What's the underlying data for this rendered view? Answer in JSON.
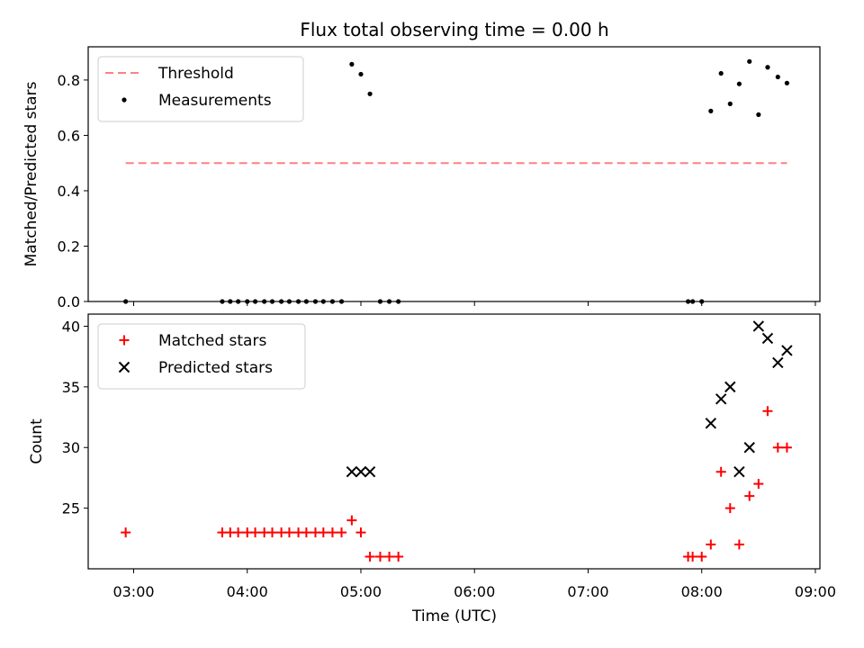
{
  "chart_data": {
    "type": "scatter",
    "title": "Flux total observing time = 0.00 h",
    "xlabel": "Time (UTC)",
    "x_ticks": [
      "03:00",
      "04:00",
      "05:00",
      "06:00",
      "07:00",
      "08:00",
      "09:00"
    ],
    "x_tick_hours": [
      3,
      4,
      5,
      6,
      7,
      8,
      9
    ],
    "xlim_hours": [
      2.6,
      9.04
    ],
    "panels": [
      {
        "name": "ratio",
        "ylabel": "Matched/Predicted stars",
        "ylim": [
          0,
          0.92
        ],
        "y_ticks": [
          0.0,
          0.2,
          0.4,
          0.6,
          0.8
        ],
        "y_tick_labels": [
          "0.0",
          "0.2",
          "0.4",
          "0.6",
          "0.8"
        ],
        "legend_position": "upper-left",
        "threshold": {
          "name": "Threshold",
          "value": 0.5,
          "x_range_hours": [
            2.93,
            8.75
          ],
          "color": "#ff8080"
        },
        "series": [
          {
            "name": "Measurements",
            "marker": "dot",
            "color": "#000000",
            "points": [
              [
                2.93,
                0.0
              ],
              [
                3.78,
                0.0
              ],
              [
                3.85,
                0.0
              ],
              [
                3.92,
                0.0
              ],
              [
                4.0,
                0.0
              ],
              [
                4.07,
                0.0
              ],
              [
                4.15,
                0.0
              ],
              [
                4.22,
                0.0
              ],
              [
                4.3,
                0.0
              ],
              [
                4.37,
                0.0
              ],
              [
                4.45,
                0.0
              ],
              [
                4.52,
                0.0
              ],
              [
                4.6,
                0.0
              ],
              [
                4.67,
                0.0
              ],
              [
                4.75,
                0.0
              ],
              [
                4.83,
                0.0
              ],
              [
                4.92,
                0.857
              ],
              [
                5.0,
                0.821
              ],
              [
                5.08,
                0.75
              ],
              [
                5.17,
                0.0
              ],
              [
                5.25,
                0.0
              ],
              [
                5.33,
                0.0
              ],
              [
                7.88,
                0.0
              ],
              [
                7.92,
                0.0
              ],
              [
                8.0,
                0.0
              ],
              [
                8.08,
                0.688
              ],
              [
                8.17,
                0.824
              ],
              [
                8.25,
                0.714
              ],
              [
                8.33,
                0.786
              ],
              [
                8.42,
                0.867
              ],
              [
                8.5,
                0.675
              ],
              [
                8.58,
                0.846
              ],
              [
                8.67,
                0.811
              ],
              [
                8.75,
                0.789
              ]
            ]
          }
        ]
      },
      {
        "name": "count",
        "ylabel": "Count",
        "ylim": [
          20.0,
          41.0
        ],
        "y_ticks": [
          25,
          30,
          35,
          40
        ],
        "y_tick_labels": [
          "25",
          "30",
          "35",
          "40"
        ],
        "legend_position": "upper-left",
        "series": [
          {
            "name": "Matched stars",
            "marker": "plus",
            "color": "#ff0000",
            "points": [
              [
                2.93,
                23
              ],
              [
                3.78,
                23
              ],
              [
                3.85,
                23
              ],
              [
                3.92,
                23
              ],
              [
                4.0,
                23
              ],
              [
                4.07,
                23
              ],
              [
                4.15,
                23
              ],
              [
                4.22,
                23
              ],
              [
                4.3,
                23
              ],
              [
                4.37,
                23
              ],
              [
                4.45,
                23
              ],
              [
                4.52,
                23
              ],
              [
                4.6,
                23
              ],
              [
                4.67,
                23
              ],
              [
                4.75,
                23
              ],
              [
                4.83,
                23
              ],
              [
                4.92,
                24
              ],
              [
                5.0,
                23
              ],
              [
                5.08,
                21
              ],
              [
                5.17,
                21
              ],
              [
                5.25,
                21
              ],
              [
                5.33,
                21
              ],
              [
                7.88,
                21
              ],
              [
                7.92,
                21
              ],
              [
                8.0,
                21
              ],
              [
                8.08,
                22
              ],
              [
                8.17,
                28
              ],
              [
                8.25,
                25
              ],
              [
                8.33,
                22
              ],
              [
                8.42,
                26
              ],
              [
                8.5,
                27
              ],
              [
                8.58,
                33
              ],
              [
                8.67,
                30
              ],
              [
                8.75,
                30
              ]
            ]
          },
          {
            "name": "Predicted stars",
            "marker": "x",
            "color": "#000000",
            "points": [
              [
                4.92,
                28
              ],
              [
                5.0,
                28
              ],
              [
                5.08,
                28
              ],
              [
                8.08,
                32
              ],
              [
                8.17,
                34
              ],
              [
                8.25,
                35
              ],
              [
                8.33,
                28
              ],
              [
                8.42,
                30
              ],
              [
                8.5,
                40
              ],
              [
                8.58,
                39
              ],
              [
                8.67,
                37
              ],
              [
                8.75,
                38
              ]
            ]
          }
        ]
      }
    ]
  }
}
